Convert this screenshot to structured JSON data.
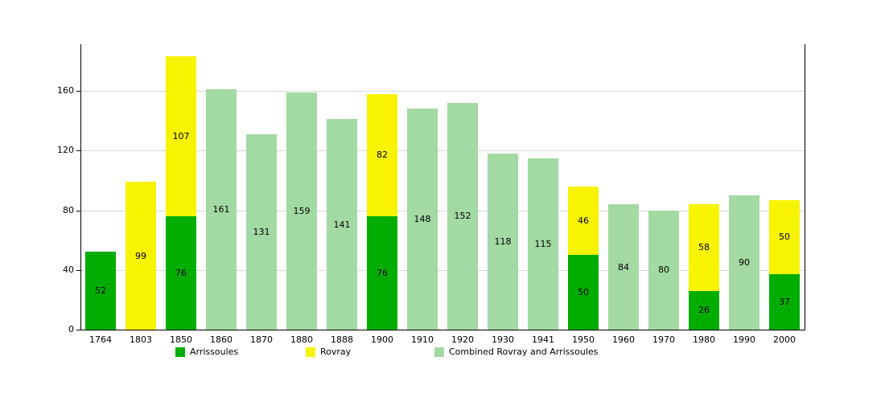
{
  "chart_data": {
    "type": "bar",
    "stacked": true,
    "title": "",
    "xlabel": "",
    "ylabel": "",
    "categories": [
      "1764",
      "1803",
      "1850",
      "1860",
      "1870",
      "1880",
      "1888",
      "1900",
      "1910",
      "1920",
      "1930",
      "1941",
      "1950",
      "1960",
      "1970",
      "1980",
      "1990",
      "2000"
    ],
    "series": [
      {
        "name": "Arrissoules",
        "color": "#00ad00",
        "values": [
          52,
          null,
          76,
          null,
          null,
          null,
          null,
          76,
          null,
          null,
          null,
          null,
          50,
          null,
          null,
          26,
          null,
          37
        ]
      },
      {
        "name": "Rovray",
        "color": "#f8f300",
        "values": [
          null,
          99,
          107,
          null,
          null,
          null,
          null,
          82,
          null,
          null,
          null,
          null,
          46,
          null,
          null,
          58,
          null,
          50
        ]
      },
      {
        "name": "Combined Rovray and Arrissoules",
        "color": "#a3d9a3",
        "values": [
          null,
          null,
          null,
          161,
          131,
          159,
          141,
          null,
          148,
          152,
          118,
          115,
          null,
          84,
          80,
          null,
          90,
          null
        ]
      }
    ],
    "yticks": [
      0,
      40,
      80,
      120,
      160
    ],
    "ylim": [
      0,
      191
    ],
    "grid": "horizontal",
    "legend_position": "bottom",
    "legend": [
      "Arrissoules",
      "Rovray",
      "Combined Rovray and Arrissoules"
    ]
  }
}
